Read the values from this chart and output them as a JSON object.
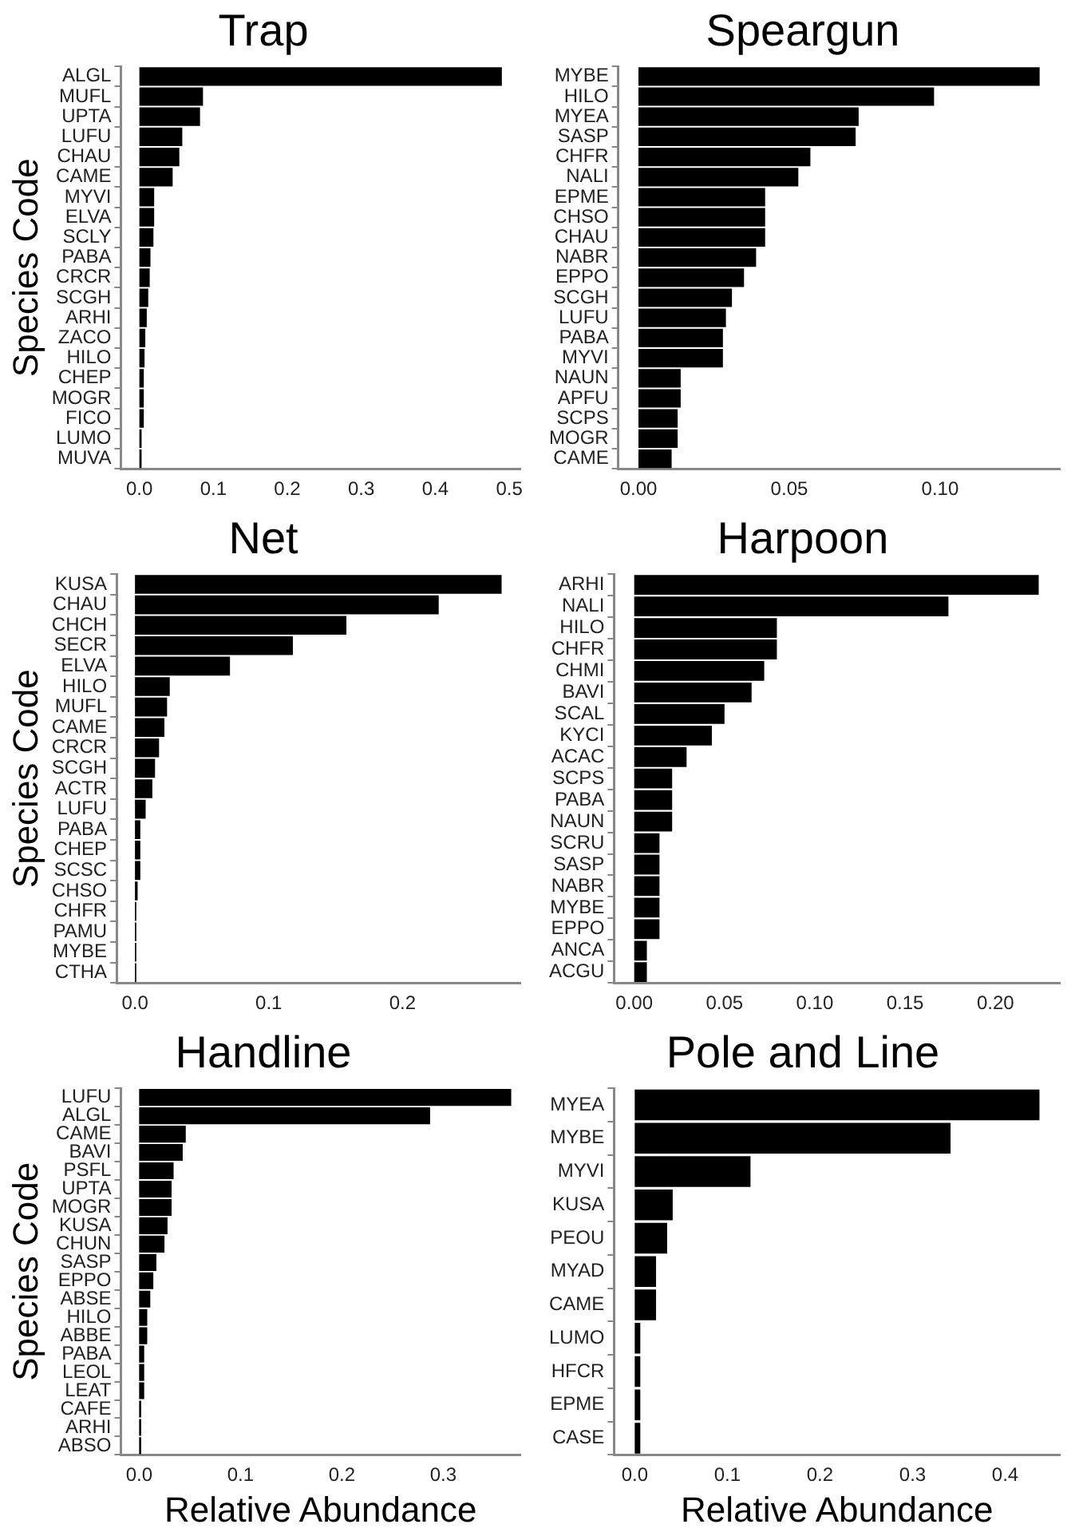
{
  "chart_data": [
    {
      "type": "bar",
      "orientation": "horizontal",
      "title": "Trap",
      "ylabel": "Species Code",
      "color": "#000000",
      "grid": false,
      "legend": false,
      "categories": [
        "ALGL",
        "MUFL",
        "UPTA",
        "LUFU",
        "CHAU",
        "CAME",
        "MYVI",
        "ELVA",
        "SCLY",
        "PABA",
        "CRCR",
        "SCGH",
        "ARHI",
        "ZACO",
        "HILO",
        "CHEP",
        "MOGR",
        "FICO",
        "LUMO",
        "MUVA"
      ],
      "values": [
        0.49,
        0.086,
        0.082,
        0.058,
        0.054,
        0.045,
        0.02,
        0.02,
        0.019,
        0.015,
        0.014,
        0.012,
        0.01,
        0.008,
        0.007,
        0.006,
        0.006,
        0.006,
        0.003,
        0.003
      ],
      "xlim": [
        -0.025,
        0.515
      ],
      "xticks": [
        {
          "value": 0,
          "label": "0.0"
        },
        0.1,
        0.2,
        0.3,
        0.4,
        0.5
      ]
    },
    {
      "type": "bar",
      "orientation": "horizontal",
      "title": "Speargun",
      "color": "#000000",
      "grid": false,
      "legend": false,
      "categories": [
        "MYBE",
        "HILO",
        "MYEA",
        "SASP",
        "CHFR",
        "NALI",
        "EPME",
        "CHSO",
        "CHAU",
        "NABR",
        "EPPO",
        "SCGH",
        "LUFU",
        "PABA",
        "MYVI",
        "NAUN",
        "APFU",
        "SCPS",
        "MOGR",
        "CAME"
      ],
      "values": [
        0.133,
        0.098,
        0.073,
        0.072,
        0.057,
        0.053,
        0.042,
        0.042,
        0.042,
        0.039,
        0.035,
        0.031,
        0.029,
        0.028,
        0.028,
        0.014,
        0.014,
        0.013,
        0.013,
        0.011
      ],
      "xlim": [
        -0.0067,
        0.1397
      ],
      "xticks": [
        {
          "value": 0,
          "label": "0.00"
        },
        0.05,
        {
          "value": 0.1,
          "label": "0.10"
        }
      ]
    },
    {
      "type": "bar",
      "orientation": "horizontal",
      "title": "Net",
      "ylabel": "Species Code",
      "color": "#000000",
      "grid": false,
      "legend": false,
      "categories": [
        "KUSA",
        "CHAU",
        "CHCH",
        "SECR",
        "ELVA",
        "HILO",
        "MUFL",
        "CAME",
        "CRCR",
        "SCGH",
        "ACTR",
        "LUFU",
        "PABA",
        "CHEP",
        "SCSC",
        "CHSO",
        "CHFR",
        "PAMU",
        "MYBE",
        "CTHA"
      ],
      "values": [
        0.274,
        0.227,
        0.158,
        0.118,
        0.071,
        0.026,
        0.024,
        0.022,
        0.018,
        0.015,
        0.013,
        0.008,
        0.004,
        0.004,
        0.004,
        0.002,
        0.001,
        0.001,
        0.001,
        0.001
      ],
      "xlim": [
        -0.0137,
        0.288
      ],
      "xticks": [
        {
          "value": 0,
          "label": "0.0"
        },
        0.1,
        0.2
      ]
    },
    {
      "type": "bar",
      "orientation": "horizontal",
      "title": "Harpoon",
      "color": "#000000",
      "grid": false,
      "legend": false,
      "categories": [
        "ARHI",
        "NALI",
        "HILO",
        "CHFR",
        "CHMI",
        "BAVI",
        "SCAL",
        "KYCI",
        "ACAC",
        "SCPS",
        "PABA",
        "NAUN",
        "SCRU",
        "SASP",
        "NABR",
        "MYBE",
        "EPPO",
        "ANCA",
        "ACGU"
      ],
      "values": [
        0.224,
        0.174,
        0.079,
        0.079,
        0.072,
        0.065,
        0.05,
        0.043,
        0.029,
        0.021,
        0.021,
        0.021,
        0.014,
        0.014,
        0.014,
        0.014,
        0.014,
        0.007,
        0.007
      ],
      "xlim": [
        -0.0112,
        0.2357
      ],
      "xticks": [
        {
          "value": 0,
          "label": "0.00"
        },
        0.05,
        {
          "value": 0.1,
          "label": "0.10"
        },
        0.15,
        {
          "value": 0.2,
          "label": "0.20"
        }
      ]
    },
    {
      "type": "bar",
      "orientation": "horizontal",
      "title": "Handline",
      "ylabel": "Species Code",
      "xlabel": "Relative Abundance",
      "color": "#000000",
      "grid": false,
      "legend": false,
      "categories": [
        "LUFU",
        "ALGL",
        "CAME",
        "BAVI",
        "PSFL",
        "UPTA",
        "MOGR",
        "KUSA",
        "CHUN",
        "SASP",
        "EPPO",
        "ABSE",
        "HILO",
        "ABBE",
        "PABA",
        "LEOL",
        "LEAT",
        "CAFE",
        "ARHI",
        "ABSO"
      ],
      "values": [
        0.367,
        0.287,
        0.046,
        0.043,
        0.034,
        0.032,
        0.032,
        0.028,
        0.025,
        0.017,
        0.014,
        0.011,
        0.008,
        0.008,
        0.005,
        0.005,
        0.005,
        0.002,
        0.002,
        0.002
      ],
      "xlim": [
        -0.018,
        0.376
      ],
      "xticks": [
        {
          "value": 0,
          "label": "0.0"
        },
        0.1,
        0.2,
        0.3
      ]
    },
    {
      "type": "bar",
      "orientation": "horizontal",
      "title": "Pole and Line",
      "xlabel": "Relative Abundance",
      "color": "#000000",
      "grid": false,
      "legend": false,
      "categories": [
        "MYEA",
        "MYBE",
        "MYVI",
        "KUSA",
        "PEOU",
        "MYAD",
        "CAME",
        "LUMO",
        "HFCR",
        "EPME",
        "CASE"
      ],
      "values": [
        0.437,
        0.341,
        0.125,
        0.041,
        0.035,
        0.023,
        0.023,
        0.006,
        0.006,
        0.006,
        0.006
      ],
      "xlim": [
        -0.0224,
        0.459
      ],
      "xticks": [
        {
          "value": 0,
          "label": "0.0"
        },
        0.1,
        0.2,
        0.3,
        0.4
      ]
    }
  ]
}
